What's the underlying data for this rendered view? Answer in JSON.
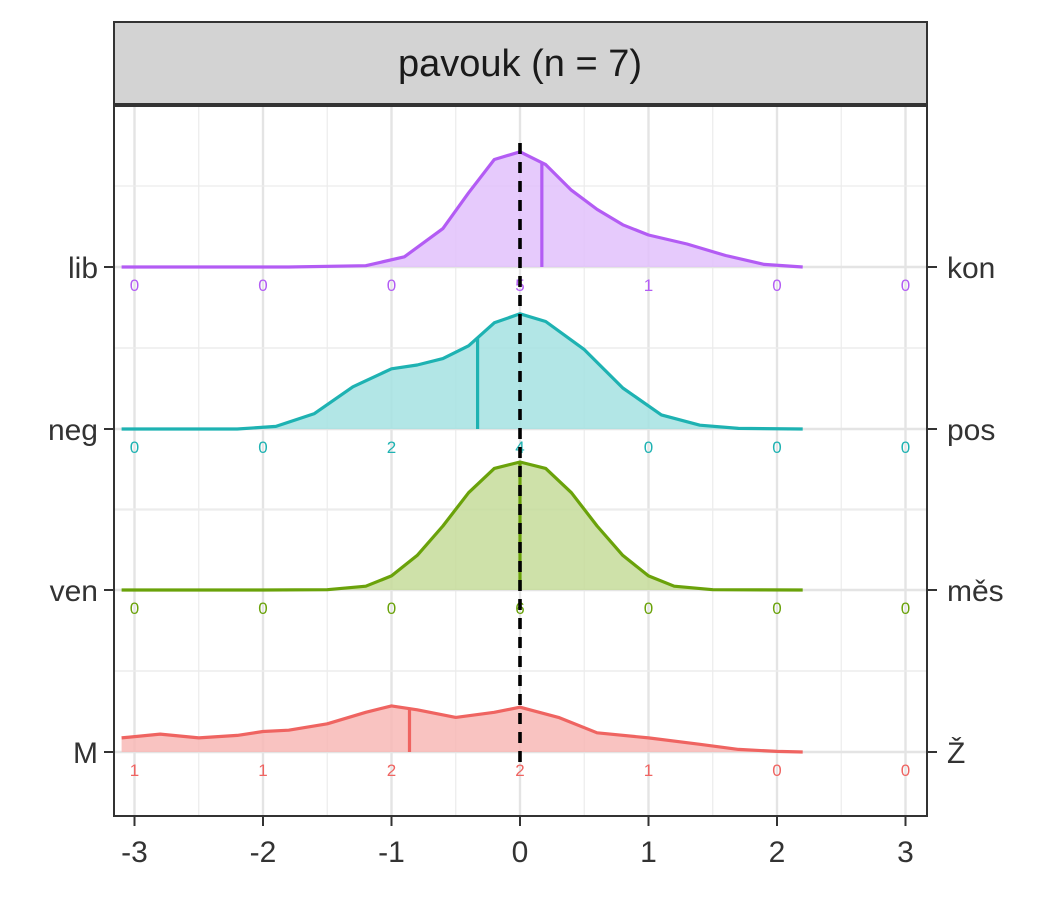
{
  "chart_data": {
    "type": "ridgeline",
    "title": "pavouk (n = 7)",
    "xlabel": "",
    "ylabel": "",
    "xlim": [
      -3,
      3
    ],
    "x_ticks": [
      "-3",
      "-2",
      "-1",
      "0",
      "1",
      "2",
      "3"
    ],
    "reference_line_x": 0,
    "grid": true,
    "count_positions": [
      -3,
      -2,
      -1,
      0,
      1,
      2,
      3
    ],
    "series": [
      {
        "left_label": "M",
        "right_label": "Ž",
        "color": "#ef6461",
        "fill": "#f8b8b6",
        "mean": -0.86,
        "counts": [
          "1",
          "1",
          "2",
          "2",
          "1",
          "0",
          "0"
        ],
        "density": [
          [
            -3.1,
            0.11
          ],
          [
            -2.8,
            0.14
          ],
          [
            -2.5,
            0.11
          ],
          [
            -2.2,
            0.13
          ],
          [
            -2.0,
            0.16
          ],
          [
            -1.8,
            0.17
          ],
          [
            -1.5,
            0.22
          ],
          [
            -1.2,
            0.31
          ],
          [
            -1.0,
            0.36
          ],
          [
            -0.8,
            0.33
          ],
          [
            -0.5,
            0.27
          ],
          [
            -0.2,
            0.31
          ],
          [
            0.0,
            0.35
          ],
          [
            0.3,
            0.27
          ],
          [
            0.6,
            0.15
          ],
          [
            1.0,
            0.11
          ],
          [
            1.4,
            0.06
          ],
          [
            1.7,
            0.02
          ],
          [
            2.0,
            0.005
          ],
          [
            2.2,
            0.0
          ]
        ]
      },
      {
        "left_label": "ven",
        "right_label": "měs",
        "color": "#6aa20a",
        "fill": "#c6dc9a",
        "mean": 0.0,
        "counts": [
          "0",
          "0",
          "0",
          "6",
          "0",
          "0",
          "0"
        ],
        "density": [
          [
            -3.1,
            0.0
          ],
          [
            -2.0,
            0.0
          ],
          [
            -1.5,
            0.002
          ],
          [
            -1.2,
            0.03
          ],
          [
            -1.0,
            0.11
          ],
          [
            -0.8,
            0.27
          ],
          [
            -0.6,
            0.5
          ],
          [
            -0.4,
            0.76
          ],
          [
            -0.2,
            0.95
          ],
          [
            0.0,
            1.0
          ],
          [
            0.2,
            0.95
          ],
          [
            0.4,
            0.76
          ],
          [
            0.6,
            0.5
          ],
          [
            0.8,
            0.27
          ],
          [
            1.0,
            0.11
          ],
          [
            1.2,
            0.03
          ],
          [
            1.5,
            0.002
          ],
          [
            2.2,
            0.0
          ]
        ]
      },
      {
        "left_label": "neg",
        "right_label": "pos",
        "color": "#1eb2b2",
        "fill": "#a4e2e2",
        "mean": -0.33,
        "counts": [
          "0",
          "0",
          "2",
          "4",
          "0",
          "0",
          "0"
        ],
        "density": [
          [
            -3.1,
            0.0
          ],
          [
            -2.2,
            0.0
          ],
          [
            -1.9,
            0.02
          ],
          [
            -1.6,
            0.12
          ],
          [
            -1.3,
            0.33
          ],
          [
            -1.0,
            0.47
          ],
          [
            -0.8,
            0.5
          ],
          [
            -0.6,
            0.55
          ],
          [
            -0.4,
            0.65
          ],
          [
            -0.2,
            0.83
          ],
          [
            0.0,
            0.9
          ],
          [
            0.2,
            0.84
          ],
          [
            0.5,
            0.62
          ],
          [
            0.8,
            0.32
          ],
          [
            1.1,
            0.11
          ],
          [
            1.4,
            0.03
          ],
          [
            1.7,
            0.005
          ],
          [
            2.2,
            0.0
          ]
        ]
      },
      {
        "left_label": "lib",
        "right_label": "kon",
        "color": "#b35cf4",
        "fill": "#e2c1fb",
        "mean": 0.17,
        "counts": [
          "0",
          "0",
          "0",
          "5",
          "1",
          "0",
          "0"
        ],
        "density": [
          [
            -3.1,
            0.0
          ],
          [
            -1.8,
            0.0
          ],
          [
            -1.2,
            0.01
          ],
          [
            -0.9,
            0.08
          ],
          [
            -0.6,
            0.3
          ],
          [
            -0.4,
            0.58
          ],
          [
            -0.2,
            0.84
          ],
          [
            0.0,
            0.9
          ],
          [
            0.2,
            0.8
          ],
          [
            0.4,
            0.6
          ],
          [
            0.6,
            0.45
          ],
          [
            0.8,
            0.33
          ],
          [
            1.0,
            0.25
          ],
          [
            1.3,
            0.18
          ],
          [
            1.6,
            0.09
          ],
          [
            1.9,
            0.02
          ],
          [
            2.2,
            0.0
          ]
        ]
      }
    ]
  }
}
